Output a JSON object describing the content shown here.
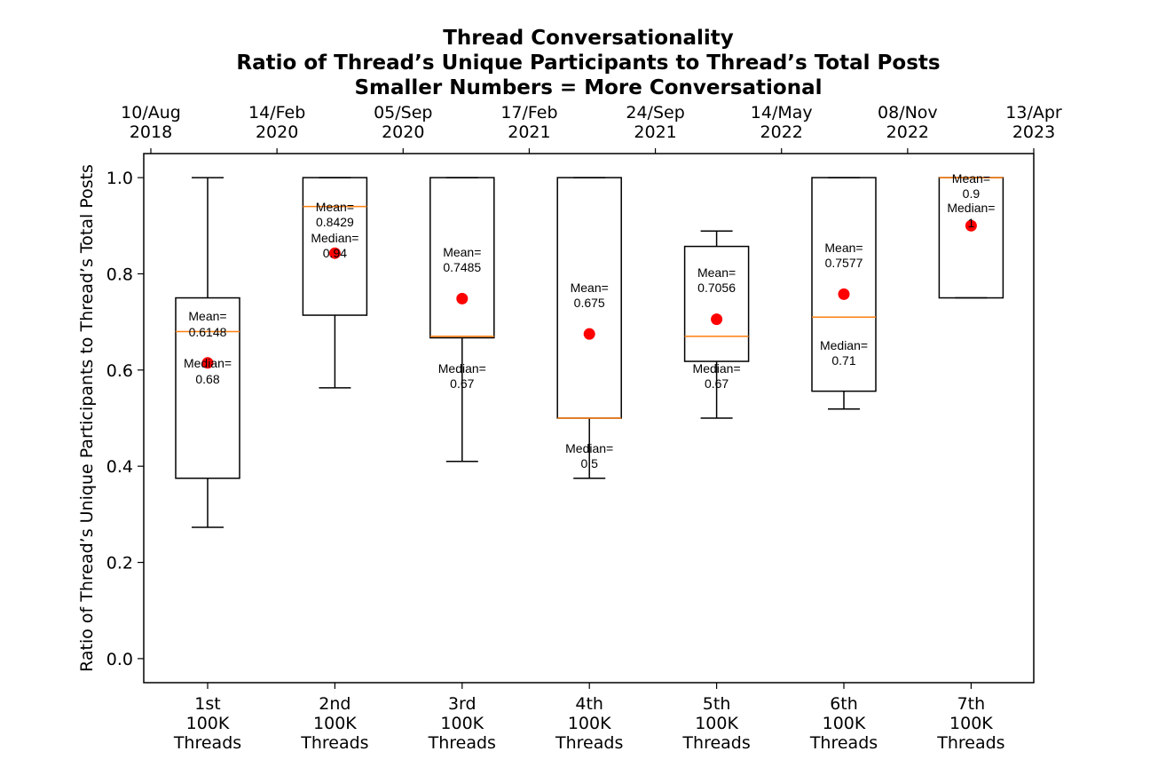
{
  "chart_data": {
    "type": "box",
    "title_lines": [
      "Thread Conversationality",
      "Ratio of Thread’s Unique Participants to Thread’s Total Posts",
      "Smaller Numbers = More Conversational"
    ],
    "ylabel": "Ratio of Thread’s Unique Participants to Thread’s Total Posts",
    "ylim": [
      -0.05,
      1.05
    ],
    "yticks": [
      0.0,
      0.2,
      0.4,
      0.6,
      0.8,
      1.0
    ],
    "ytick_labels": [
      "0.0",
      "0.2",
      "0.4",
      "0.6",
      "0.8",
      "1.0"
    ],
    "top_axis_labels": [
      [
        "10/Aug",
        "2018"
      ],
      [
        "14/Feb",
        "2020"
      ],
      [
        "05/Sep",
        "2020"
      ],
      [
        "17/Feb",
        "2021"
      ],
      [
        "24/Sep",
        "2021"
      ],
      [
        "14/May",
        "2022"
      ],
      [
        "08/Nov",
        "2022"
      ],
      [
        "13/Apr",
        "2023"
      ]
    ],
    "categories": [
      [
        "1st",
        "100K",
        "Threads"
      ],
      [
        "2nd",
        "100K",
        "Threads"
      ],
      [
        "3rd",
        "100K",
        "Threads"
      ],
      [
        "4th",
        "100K",
        "Threads"
      ],
      [
        "5th",
        "100K",
        "Threads"
      ],
      [
        "6th",
        "100K",
        "Threads"
      ],
      [
        "7th",
        "100K",
        "Threads"
      ]
    ],
    "boxes": [
      {
        "whisker_low": 0.273,
        "q1": 0.375,
        "median": 0.68,
        "q3": 0.75,
        "whisker_high": 1.0,
        "mean": 0.6148,
        "mean_label": [
          "Mean=",
          "0.6148"
        ],
        "median_label": [
          "Median=",
          "0.68"
        ]
      },
      {
        "whisker_low": 0.563,
        "q1": 0.714,
        "median": 0.94,
        "q3": 1.0,
        "whisker_high": 1.0,
        "mean": 0.8429,
        "mean_label": [
          "Mean=",
          "0.8429"
        ],
        "median_label": [
          "Median=",
          "0.94"
        ]
      },
      {
        "whisker_low": 0.41,
        "q1": 0.667,
        "median": 0.67,
        "q3": 1.0,
        "whisker_high": 1.0,
        "mean": 0.7485,
        "mean_label": [
          "Mean=",
          "0.7485"
        ],
        "median_label": [
          "Median=",
          "0.67"
        ]
      },
      {
        "whisker_low": 0.375,
        "q1": 0.5,
        "median": 0.5,
        "q3": 1.0,
        "whisker_high": 1.0,
        "mean": 0.675,
        "mean_label": [
          "Mean=",
          "0.675"
        ],
        "median_label": [
          "Median=",
          "0.5"
        ]
      },
      {
        "whisker_low": 0.5,
        "q1": 0.618,
        "median": 0.67,
        "q3": 0.857,
        "whisker_high": 0.889,
        "mean": 0.7056,
        "mean_label": [
          "Mean=",
          "0.7056"
        ],
        "median_label": [
          "Median=",
          "0.67"
        ]
      },
      {
        "whisker_low": 0.519,
        "q1": 0.556,
        "median": 0.71,
        "q3": 1.0,
        "whisker_high": 1.0,
        "mean": 0.7577,
        "mean_label": [
          "Mean=",
          "0.7577"
        ],
        "median_label": [
          "Median=",
          "0.71"
        ]
      },
      {
        "whisker_low": 0.75,
        "q1": 0.75,
        "median": 1.0,
        "q3": 1.0,
        "whisker_high": 1.0,
        "mean": 0.9,
        "mean_label": [
          "Mean=",
          "0.9"
        ],
        "median_label": [
          "Median=",
          "1"
        ]
      }
    ],
    "median_color": "#ff7f0e",
    "mean_color": "#ff0000",
    "box_color": "#000000",
    "grid": false,
    "legend": "none"
  }
}
